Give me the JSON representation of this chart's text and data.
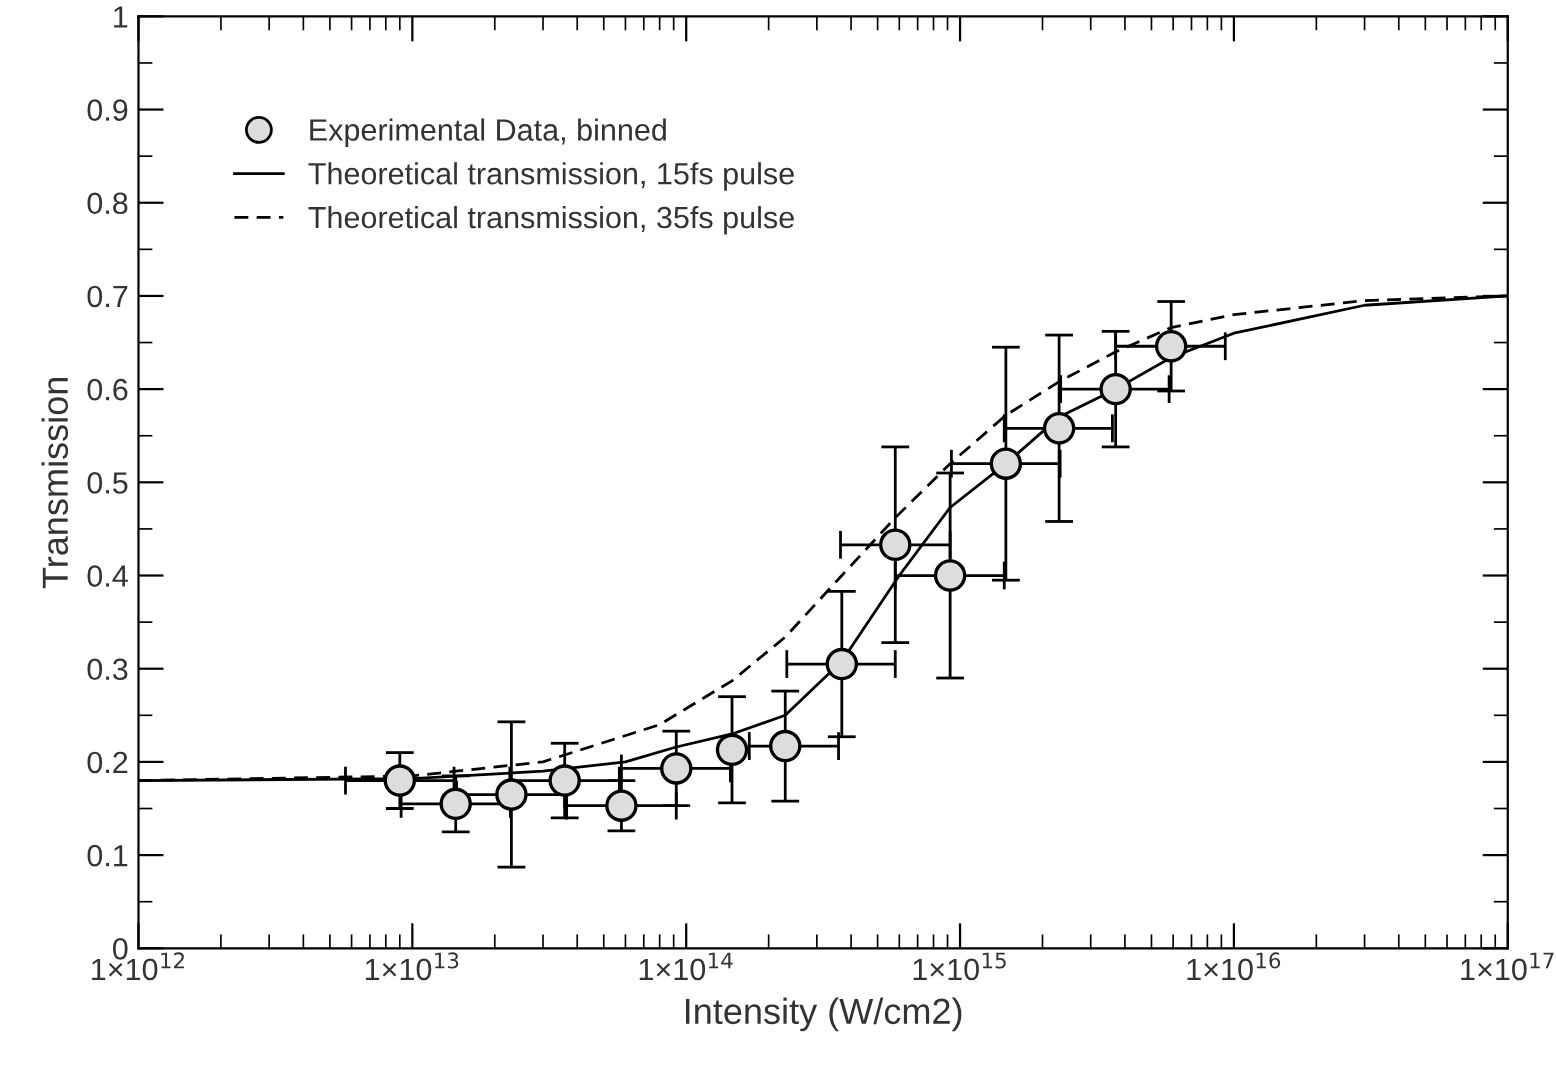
{
  "chart_data": {
    "type": "scatter",
    "xlabel": "Intensity (W/cm2)",
    "ylabel": "Transmission",
    "log": "x",
    "xlim": [
      1000000000000.0,
      1e+17
    ],
    "ylim": [
      0,
      1
    ],
    "xticks": [
      {
        "value": 1000000000000.0,
        "label": "1×10$^{12}$"
      },
      {
        "value": 10000000000000.0,
        "label": "1×10$^{13}$"
      },
      {
        "value": 100000000000000.0,
        "label": "1×10$^{14}$"
      },
      {
        "value": 1000000000000000.0,
        "label": "1×10$^{15}$"
      },
      {
        "value": 1e+16,
        "label": "1×10$^{16}$"
      },
      {
        "value": 1e+17,
        "label": "1×10$^{17}$"
      }
    ],
    "yticks": [
      0,
      0.1,
      0.2,
      0.3,
      0.4,
      0.5,
      0.6,
      0.7,
      0.8,
      0.9,
      1
    ],
    "grid": false,
    "legend": "top left",
    "series": [
      {
        "name": "Experimental Data, binned",
        "marker": "circle",
        "color": "#dddddd",
        "x": [
          9000000000000.0,
          14400000000000.0,
          23000000000000.0,
          36000000000000.0,
          58000000000000.0,
          92000000000000.0,
          147000000000000.0,
          230000000000000.0,
          370000000000000.0,
          580000000000000.0,
          920000000000000.0,
          1470000000000000.0,
          2300000000000000.0,
          3700000000000000.0,
          5900000000000000.0
        ],
        "values": [
          0.18,
          0.155,
          0.165,
          0.18,
          0.153,
          0.193,
          0.213,
          0.217,
          0.305,
          0.433,
          0.4,
          0.52,
          0.558,
          0.6,
          0.646
        ],
        "errors": [
          0.03,
          0.03,
          0.078,
          0.04,
          0.027,
          0.04,
          0.057,
          0.059,
          0.078,
          0.105,
          0.11,
          0.125,
          0.1,
          0.062,
          0.048
        ],
        "xerrors": [
          [
            5700000000000.0,
            14200000000000.0
          ],
          [
            9100000000000.0,
            22800000000000.0
          ],
          [
            14500000000000.0,
            36000000000000.0
          ],
          [
            22700000000000.0,
            57000000000000.0
          ],
          [
            36600000000000.0,
            92000000000000.0
          ],
          [
            58000000000000.0,
            145000000000000.0
          ],
          null,
          [
            170000000000000.0,
            360000000000000.0
          ],
          [
            233000000000000.0,
            580000000000000.0
          ],
          [
            366000000000000.0,
            920000000000000.0
          ],
          [
            580000000000000.0,
            1450000000000000.0
          ],
          [
            930000000000000.0,
            2320000000000000.0
          ],
          [
            1450000000000000.0,
            3600000000000000.0
          ],
          [
            2330000000000000.0,
            5800000000000000.0
          ],
          [
            3700000000000000.0,
            9300000000000000.0
          ]
        ]
      },
      {
        "name": "Theoretical transmission, 15fs pulse",
        "type": "line",
        "line_style": "solid",
        "marker": "none",
        "color": "#000000",
        "x": [
          1000000000000.0,
          10000000000000.0,
          30000000000000.0,
          60000000000000.0,
          92000000000000.0,
          147000000000000.0,
          230000000000000.0,
          370000000000000.0,
          600000000000000.0,
          920000000000000.0,
          1470000000000000.0,
          2300000000000000.0,
          3700000000000000.0,
          5900000000000000.0,
          1e+16,
          3e+16,
          1e+17
        ],
        "values": [
          0.18,
          0.182,
          0.19,
          0.2,
          0.216,
          0.23,
          0.25,
          0.308,
          0.4,
          0.473,
          0.52,
          0.57,
          0.6,
          0.634,
          0.66,
          0.69,
          0.7
        ]
      },
      {
        "name": "Theoretical transmission, 35fs pulse",
        "type": "line",
        "line_style": "dashed",
        "marker": "none",
        "color": "#000000",
        "x": [
          1000000000000.0,
          10000000000000.0,
          30000000000000.0,
          80000000000000.0,
          147000000000000.0,
          230000000000000.0,
          370000000000000.0,
          580000000000000.0,
          920000000000000.0,
          1470000000000000.0,
          2300000000000000.0,
          3700000000000000.0,
          5900000000000000.0,
          1e+16,
          3e+16,
          1e+17
        ],
        "values": [
          0.18,
          0.185,
          0.2,
          0.24,
          0.287,
          0.334,
          0.4,
          0.462,
          0.52,
          0.572,
          0.608,
          0.64,
          0.666,
          0.68,
          0.695,
          0.7
        ]
      }
    ]
  }
}
